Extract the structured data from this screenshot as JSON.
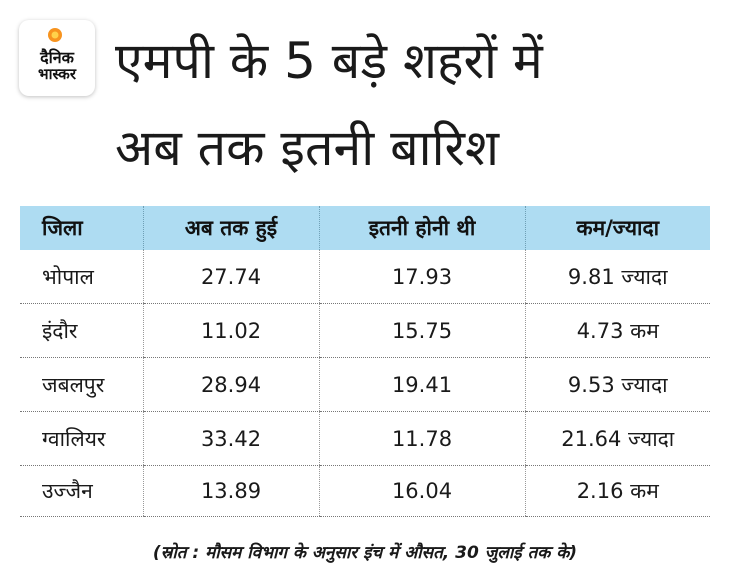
{
  "logo": {
    "line1": "दैनिक",
    "line2": "भास्कर",
    "accent_color": "#f7931e"
  },
  "title": {
    "line1": "एमपी के 5 बड़े शहरों में",
    "line2": "अब तक इतनी बारिश"
  },
  "table": {
    "header_bg": "#aedcf2",
    "headers": [
      "जिला",
      "अब तक हुई",
      "इतनी होनी थी",
      "कम/ज्यादा"
    ],
    "rows": [
      [
        "भोपाल",
        "27.74",
        "17.93",
        "9.81 ज्यादा"
      ],
      [
        "इंदौर",
        "11.02",
        "15.75",
        "4.73 कम"
      ],
      [
        "जबलपुर",
        "28.94",
        "19.41",
        "9.53 ज्यादा"
      ],
      [
        "ग्वालियर",
        "33.42",
        "11.78",
        "21.64 ज्यादा"
      ],
      [
        "उज्जैन",
        "13.89",
        "16.04",
        "2.16 कम"
      ]
    ]
  },
  "source": "(स्रोत : मौसम विभाग के अनुसार इंच में औसत, 30 जुलाई तक के)"
}
